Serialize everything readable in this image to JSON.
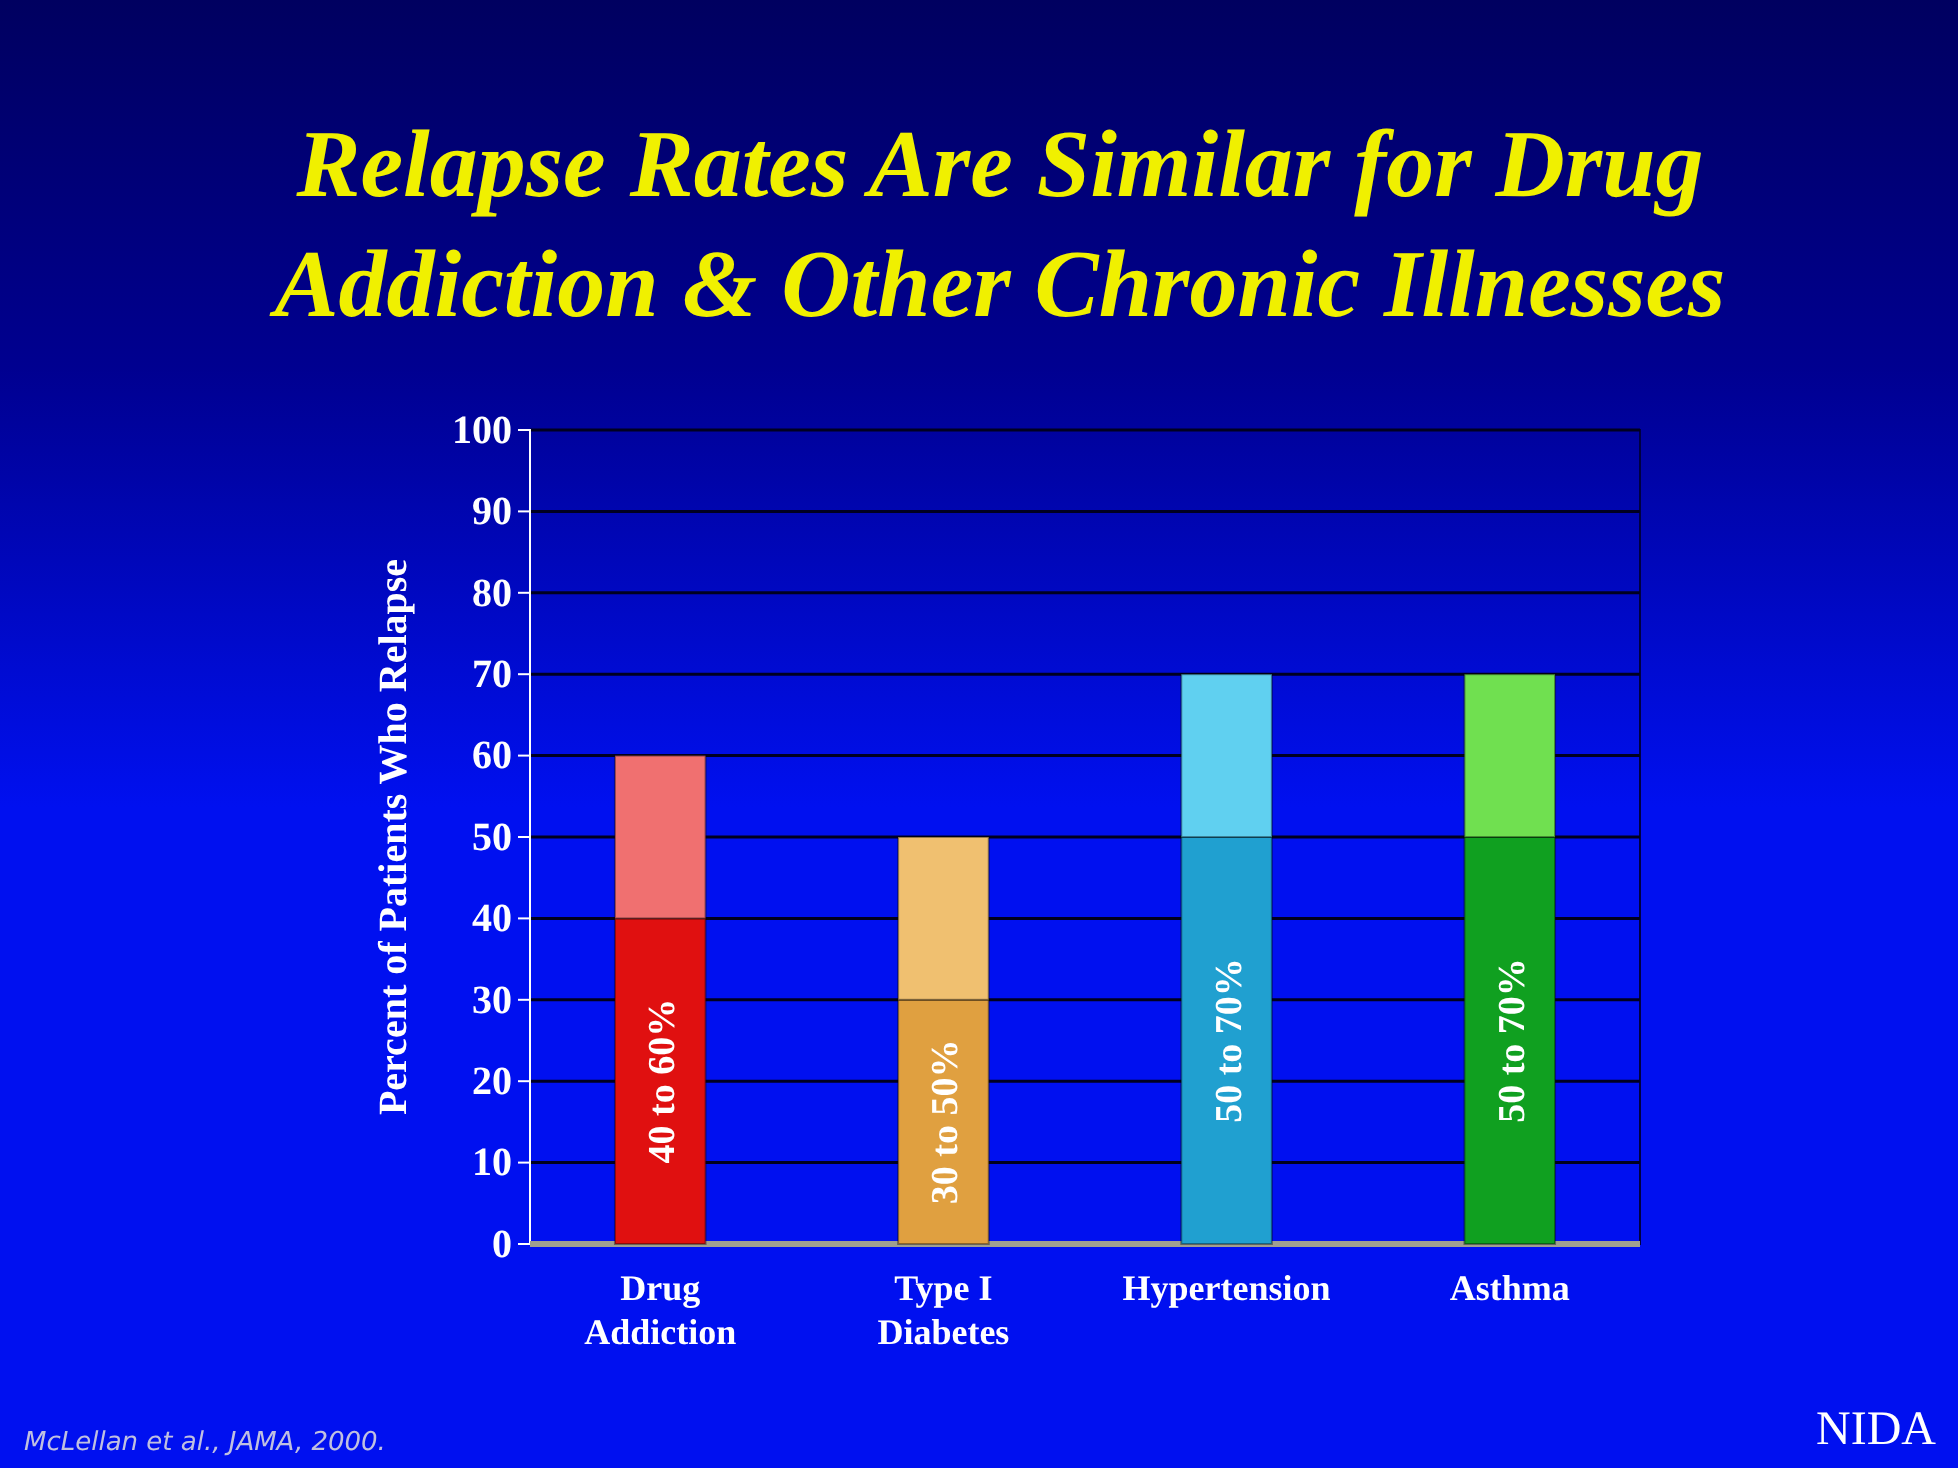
{
  "chart_data": {
    "type": "bar",
    "title": "Relapse Rates Are Similar for Drug Addiction & Other Chronic Illnesses",
    "ylabel": "Percent of Patients Who Relapse",
    "categories": [
      "Drug Addiction",
      "Type I Diabetes",
      "Hypertension",
      "Asthma"
    ],
    "stacked": true,
    "series": [
      {
        "colors": [
          "#e01010",
          "#e0a040",
          "#20a0d0",
          "#10a020"
        ],
        "values": [
          40,
          30,
          50,
          50
        ],
        "value_labels": [
          "40 to 60%",
          "30 to 50%",
          "50 to 70%",
          "50 to 70%"
        ]
      },
      {
        "colors": [
          "#f07070",
          "#f0c070",
          "#60d0f0",
          "#70e050"
        ],
        "values": [
          20,
          20,
          20,
          20
        ]
      }
    ],
    "ylim": [
      0,
      100
    ],
    "yticks": [
      0,
      10,
      20,
      30,
      40,
      50,
      60,
      70,
      80,
      90,
      100
    ],
    "grid": "y",
    "annotations": [
      "McLellan et al., JAMA, 2000.",
      "NIDA"
    ]
  }
}
